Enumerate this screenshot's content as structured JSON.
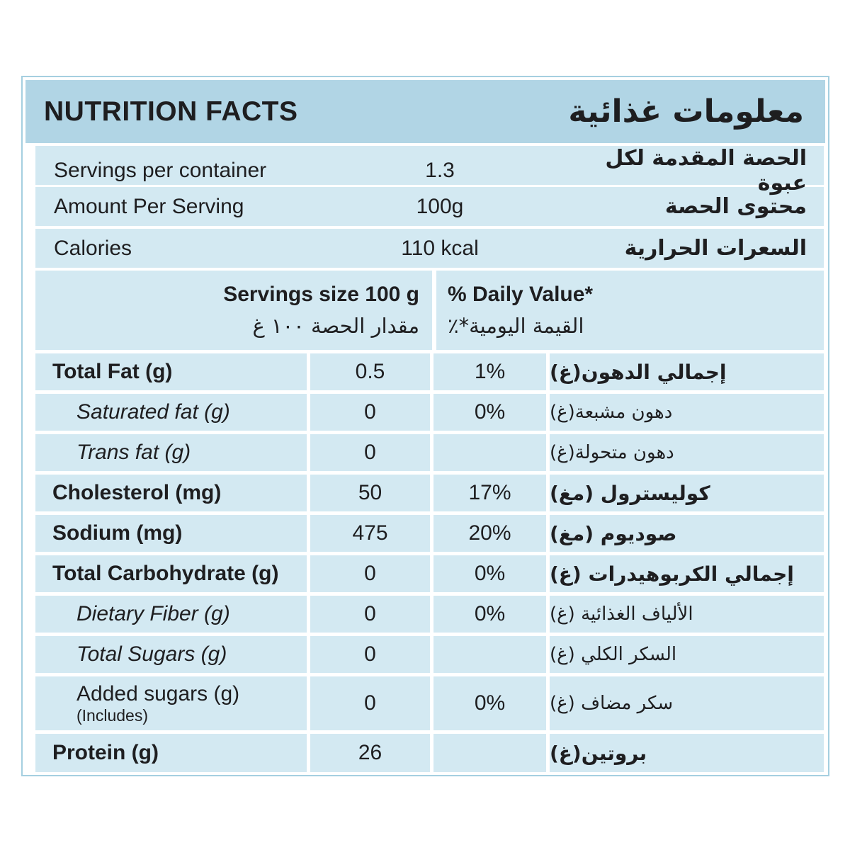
{
  "header": {
    "title_en": "NUTRITION FACTS",
    "title_ar": "معلومات غذائية"
  },
  "info_rows": [
    {
      "en": "Servings per container",
      "value": "1.3",
      "ar": "الحصة المقدمة لكل عبوة"
    },
    {
      "en": "Amount Per Serving",
      "value": "100g",
      "ar": "محتوى الحصة"
    },
    {
      "en": "Calories",
      "value": "110 kcal",
      "ar": "السعرات الحرارية"
    }
  ],
  "column_header": {
    "serving_size_en": "Servings size 100 g",
    "serving_size_ar": "مقدار الحصة ١٠٠ غ",
    "daily_value_en": "% Daily Value*",
    "daily_value_ar": "القيمة اليومية*٪"
  },
  "nutrients": [
    {
      "en": "Total Fat (g)",
      "amount": "0.5",
      "dv": "1%",
      "ar": "إجمالي الدهون(غ)"
    },
    {
      "en": "Saturated fat (g)",
      "amount": "0",
      "dv": "0%",
      "ar": "دهون مشبعة(غ)"
    },
    {
      "en": "Trans fat (g)",
      "amount": "0",
      "dv": "",
      "ar": "دهون متحولة(غ)"
    },
    {
      "en": "Cholesterol (mg)",
      "amount": "50",
      "dv": "17%",
      "ar": "كوليسترول (مغ)"
    },
    {
      "en": "Sodium (mg)",
      "amount": "475",
      "dv": "20%",
      "ar": "صوديوم (مغ)"
    },
    {
      "en": "Total Carbohydrate (g)",
      "amount": "0",
      "dv": "0%",
      "ar": "إجمالي الكربوهيدرات (غ)"
    },
    {
      "en": "Dietary Fiber (g)",
      "amount": "0",
      "dv": "0%",
      "ar": "الألياف الغذائية (غ)"
    },
    {
      "en": "Total Sugars (g)",
      "amount": "0",
      "dv": "",
      "ar": "السكر الكلي (غ)"
    },
    {
      "en": "Added sugars (g)",
      "note": "(Includes)",
      "amount": "0",
      "dv": "0%",
      "ar": "سكر مضاف (غ)"
    },
    {
      "en": "Protein (g)",
      "amount": "26",
      "dv": "",
      "ar": "بروتين(غ)"
    }
  ],
  "colors": {
    "header_band": "#b1d5e5",
    "row_fill": "#d3e9f2",
    "outer_border": "#a5cfe0",
    "text": "#1e1e20"
  }
}
